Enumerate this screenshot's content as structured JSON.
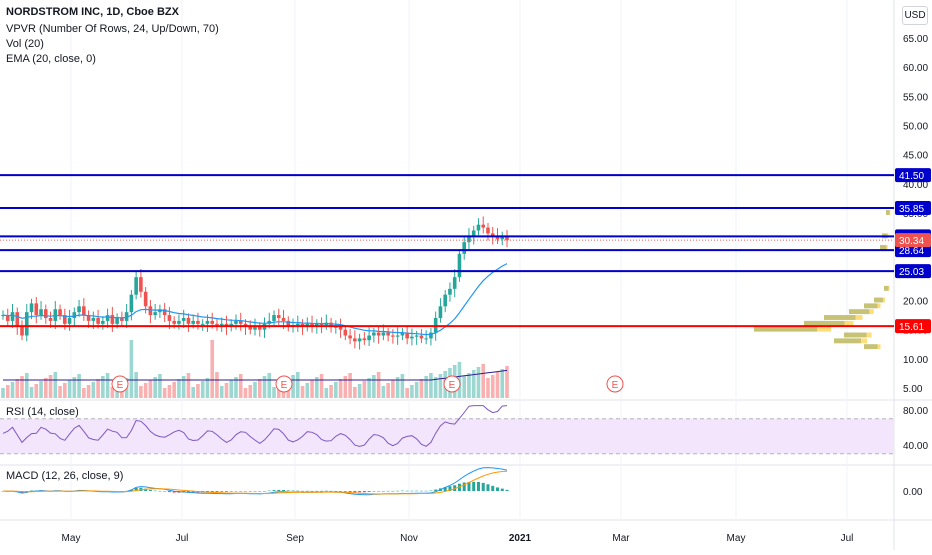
{
  "legend": {
    "title": "NORDSTROM INC, 1D, Cboe BZX",
    "vpvr": "VPVR (Number Of Rows, 24, Up/Down, 70)",
    "vol": "Vol (20)",
    "ema": "EMA (20, close, 0)",
    "rsi": "RSI (14, close)",
    "macd": "MACD (12, 26, close, 9)"
  },
  "currency_button": "USD",
  "colors": {
    "up": "#26a69a",
    "down": "#ef5350",
    "ema": "#2196f3",
    "hline_blue": "#0000cc",
    "hline_red": "#ff0000",
    "rsi_line": "#7e57c2",
    "rsi_band": "#f3e5fc",
    "macd_line": "#2196f3",
    "signal_line": "#ff9800",
    "earnings": "#ef5350"
  },
  "chart_data": {
    "type": "candlestick",
    "price_axis_ticks": [
      "65.00",
      "60.00",
      "55.00",
      "50.00",
      "45.00",
      "40.00",
      "35.00",
      "30.00",
      "25.00",
      "20.00",
      "15.00",
      "10.00",
      "5.00"
    ],
    "rsi_axis_ticks": [
      "80.00",
      "40.00"
    ],
    "macd_axis_ticks": [
      "0.00"
    ],
    "x_tick_labels": [
      "May",
      "Jul",
      "Sep",
      "Nov",
      "2021",
      "Mar",
      "May",
      "Jul"
    ],
    "horizontal_levels": [
      {
        "value": 41.5,
        "label": "41.50",
        "color": "blue"
      },
      {
        "value": 35.85,
        "label": "35.85",
        "color": "blue"
      },
      {
        "value": 30.99,
        "label": "30.99",
        "color": "blue"
      },
      {
        "value": 28.64,
        "label": "28.64",
        "color": "blue"
      },
      {
        "value": 25.03,
        "label": "25.03",
        "color": "blue"
      },
      {
        "value": 15.61,
        "label": "15.61",
        "color": "red"
      }
    ],
    "last_price": "30.34",
    "earnings_markers": [
      "E",
      "E",
      "E",
      "E"
    ],
    "approx_close_series": [
      17.5,
      16.5,
      18.0,
      15.5,
      14.0,
      18.0,
      19.5,
      17.5,
      18.5,
      17.0,
      16.5,
      18.5,
      17.5,
      16.0,
      17.0,
      18.0,
      19.0,
      17.5,
      16.5,
      17.0,
      16.0,
      16.5,
      17.5,
      16.0,
      17.0,
      16.5,
      18.0,
      21.0,
      24.0,
      21.5,
      19.0,
      17.5,
      18.0,
      18.5,
      17.5,
      16.5,
      16.0,
      16.5,
      17.0,
      16.0,
      16.5,
      16.0,
      16.0,
      16.5,
      16.0,
      15.8,
      16.0,
      15.5,
      16.0,
      16.5,
      16.0,
      15.5,
      15.0,
      15.5,
      15.0,
      16.0,
      16.5,
      17.5,
      17.0,
      16.5,
      15.5,
      15.8,
      16.0,
      15.5,
      16.0,
      15.5,
      16.0,
      15.8,
      16.2,
      15.5,
      15.5,
      15.0,
      14.0,
      13.5,
      13.0,
      13.5,
      13.2,
      14.0,
      14.5,
      14.0,
      14.5,
      14.0,
      13.8,
      14.0,
      14.5,
      13.5,
      13.8,
      14.0,
      13.5,
      13.5,
      14.5,
      17.0,
      19.0,
      21.0,
      22.0,
      24.0,
      28.0,
      30.0,
      31.0,
      32.0,
      33.0,
      32.5,
      31.5,
      31.0,
      30.5,
      31.0,
      30.34
    ]
  }
}
